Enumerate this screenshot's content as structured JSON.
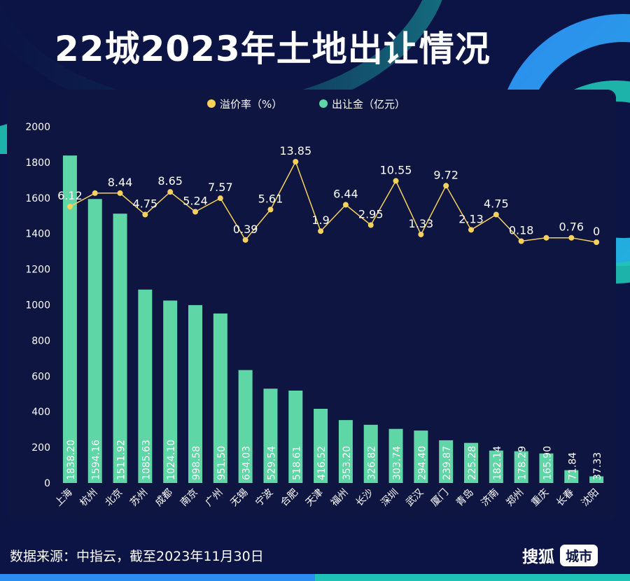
{
  "page": {
    "title": "22城2023年土地出让情况",
    "source": "数据来源：中指云，截至2023年11月30日",
    "brand": "搜狐",
    "brand_tag": "城市"
  },
  "colors": {
    "background": "#0b1445",
    "bar": "#5ed6a6",
    "line": "#f6d25c",
    "text": "#ffffff",
    "accent_blue": "#2d8cf0",
    "accent_teal": "#1fc3b5"
  },
  "chart_data": {
    "type": "bar",
    "title": "22城2023年土地出让情况",
    "categories": [
      "上海",
      "杭州",
      "北京",
      "苏州",
      "成都",
      "南京",
      "广州",
      "无锡",
      "宁波",
      "合肥",
      "天津",
      "福州",
      "长沙",
      "深圳",
      "武汉",
      "厦门",
      "青岛",
      "济南",
      "郑州",
      "重庆",
      "长春",
      "沈阳"
    ],
    "series": [
      {
        "name": "出让金（亿元）",
        "type": "bar",
        "values": [
          1838.2,
          1594.16,
          1511.92,
          1085.63,
          1024.1,
          998.58,
          951.5,
          634.03,
          529.54,
          518.61,
          416.52,
          353.2,
          326.82,
          303.74,
          294.4,
          239.87,
          225.28,
          182.14,
          178.29,
          165.9,
          71.84,
          37.33
        ],
        "labels": [
          "1838.20",
          "1594.16",
          "1511.92",
          "1085.63",
          "1024.10",
          "998.58",
          "951.50",
          "634.03",
          "529.54",
          "518.61",
          "416.52",
          "353.20",
          "326.82",
          "303.74",
          "294.40",
          "239.87",
          "225.28",
          "182.14",
          "178.29",
          "165.90",
          "71.84",
          "37.33"
        ]
      },
      {
        "name": "溢价率（%）",
        "type": "line",
        "values": [
          6.12,
          8.44,
          8.44,
          4.75,
          8.65,
          5.24,
          7.57,
          0.39,
          5.61,
          13.85,
          1.9,
          6.44,
          2.95,
          10.55,
          1.33,
          9.72,
          2.13,
          4.75,
          0.18,
          0.76,
          0.76,
          0
        ],
        "labels": [
          "6.12",
          "",
          "8.44",
          "4.75",
          "8.65",
          "5.24",
          "7.57",
          "0.39",
          "5.61",
          "13.85",
          "1.9",
          "6.44",
          "2.95",
          "10.55",
          "1.33",
          "9.72",
          "2.13",
          "4.75",
          "0.18",
          "",
          "0.76",
          "0"
        ]
      }
    ],
    "y_axis": {
      "min": 0,
      "max": 2000,
      "ticks": [
        "0",
        "200",
        "400",
        "600",
        "800",
        "1000",
        "1200",
        "1400",
        "1600",
        "1800",
        "2000"
      ]
    },
    "legend": {
      "position": "top-center",
      "items": [
        "溢价率（%）",
        "出让金（亿元）"
      ]
    },
    "grid": false
  }
}
